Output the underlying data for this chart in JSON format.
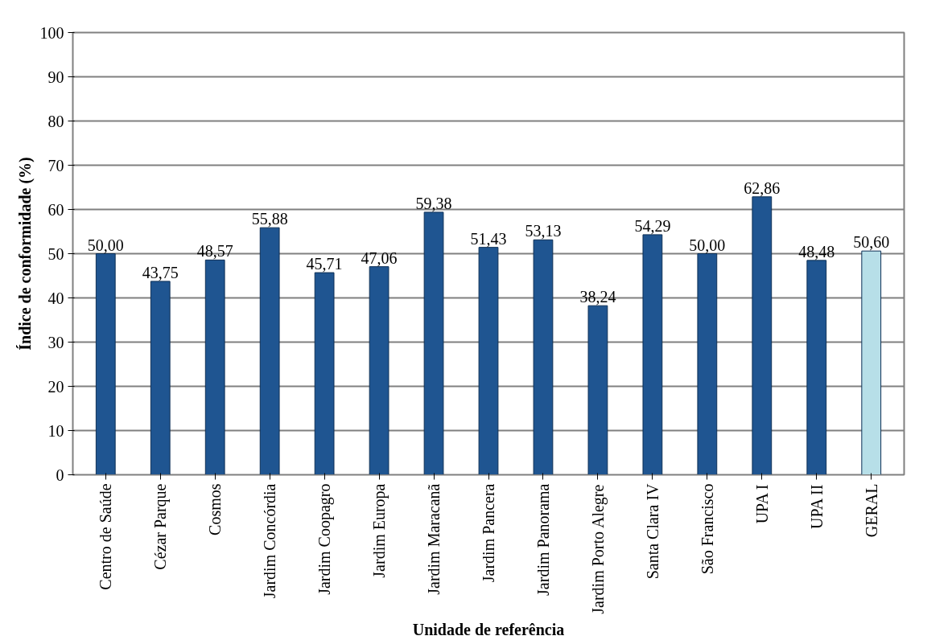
{
  "chart_data": {
    "type": "bar",
    "xlabel": "Unidade de referência",
    "ylabel": "Índice de conformidade (%)",
    "categories": [
      "Centro de Saúde",
      "Cézar Parque",
      "Cosmos",
      "Jardim Concórdia",
      "Jardim Coopagro",
      "Jardim Europa",
      "Jardim Maracanã",
      "Jardim Pancera",
      "Jardim Panorama",
      "Jardim Porto Alegre",
      "Santa Clara IV",
      "São Francisco",
      "UPA I",
      "UPA II",
      "GERAL"
    ],
    "values": [
      50.0,
      43.75,
      48.57,
      55.88,
      45.71,
      47.06,
      59.38,
      51.43,
      53.13,
      38.24,
      54.29,
      50.0,
      62.86,
      48.48,
      50.6
    ],
    "value_labels": [
      "50,00",
      "43,75",
      "48,57",
      "55,88",
      "45,71",
      "47,06",
      "59,38",
      "51,43",
      "53,13",
      "38,24",
      "54,29",
      "50,00",
      "62,86",
      "48,48",
      "50,60"
    ],
    "colors": [
      "#1f5591",
      "#1f5591",
      "#1f5591",
      "#1f5591",
      "#1f5591",
      "#1f5591",
      "#1f5591",
      "#1f5591",
      "#1f5591",
      "#1f5591",
      "#1f5591",
      "#1f5591",
      "#1f5591",
      "#1f5591",
      "#b7dfe8"
    ],
    "ylim": [
      0,
      100
    ],
    "yticks": [
      0,
      10,
      20,
      30,
      40,
      50,
      60,
      70,
      80,
      90,
      100
    ],
    "grid": "y"
  }
}
